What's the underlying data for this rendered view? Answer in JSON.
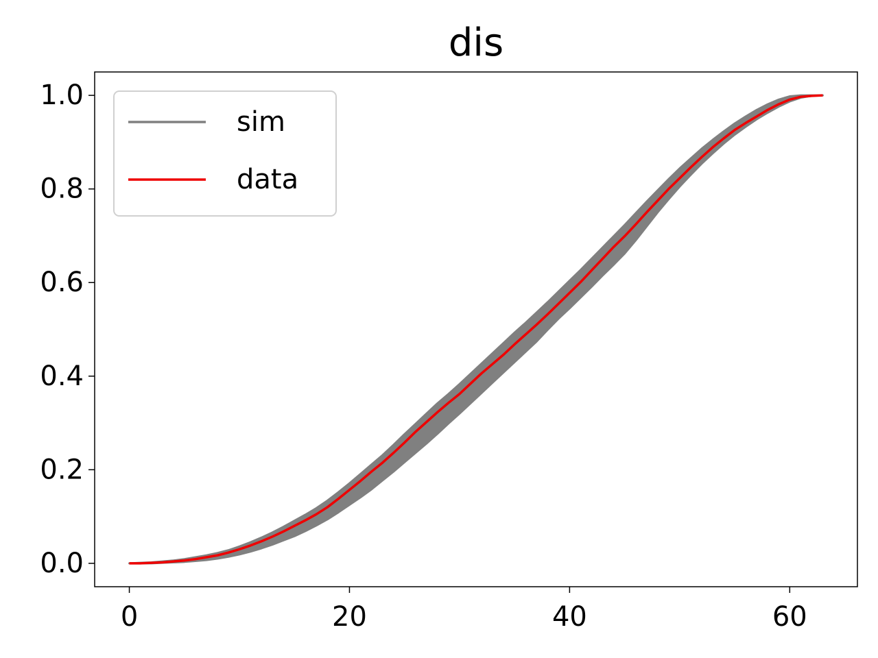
{
  "chart_data": {
    "type": "line",
    "title": "dis",
    "x": [
      0,
      1,
      2,
      3,
      4,
      5,
      6,
      7,
      8,
      9,
      10,
      11,
      12,
      13,
      14,
      15,
      16,
      17,
      18,
      19,
      20,
      21,
      22,
      23,
      24,
      25,
      26,
      27,
      28,
      29,
      30,
      31,
      32,
      33,
      34,
      35,
      36,
      37,
      38,
      39,
      40,
      41,
      42,
      43,
      44,
      45,
      46,
      47,
      48,
      49,
      50,
      51,
      52,
      53,
      54,
      55,
      56,
      57,
      58,
      59,
      60,
      61,
      62,
      63
    ],
    "series": [
      {
        "name": "sim",
        "color": "#808080",
        "upper": [
          0,
          0.001,
          0.002,
          0.004,
          0.006,
          0.009,
          0.013,
          0.017,
          0.022,
          0.028,
          0.036,
          0.045,
          0.055,
          0.066,
          0.078,
          0.091,
          0.104,
          0.118,
          0.134,
          0.152,
          0.171,
          0.191,
          0.211,
          0.231,
          0.253,
          0.276,
          0.298,
          0.32,
          0.342,
          0.362,
          0.383,
          0.405,
          0.427,
          0.449,
          0.471,
          0.493,
          0.514,
          0.536,
          0.558,
          0.581,
          0.604,
          0.627,
          0.651,
          0.675,
          0.699,
          0.723,
          0.748,
          0.773,
          0.797,
          0.821,
          0.844,
          0.865,
          0.886,
          0.905,
          0.923,
          0.94,
          0.955,
          0.969,
          0.981,
          0.991,
          0.998,
          1.0,
          1.0,
          1.0
        ],
        "lower": [
          0,
          0,
          0,
          0.001,
          0.002,
          0.003,
          0.005,
          0.007,
          0.01,
          0.014,
          0.019,
          0.025,
          0.032,
          0.04,
          0.049,
          0.058,
          0.069,
          0.081,
          0.094,
          0.109,
          0.125,
          0.141,
          0.158,
          0.177,
          0.196,
          0.216,
          0.236,
          0.256,
          0.277,
          0.299,
          0.32,
          0.342,
          0.364,
          0.386,
          0.408,
          0.43,
          0.452,
          0.474,
          0.499,
          0.523,
          0.545,
          0.568,
          0.591,
          0.615,
          0.638,
          0.662,
          0.69,
          0.72,
          0.75,
          0.778,
          0.805,
          0.83,
          0.854,
          0.876,
          0.897,
          0.916,
          0.933,
          0.949,
          0.963,
          0.976,
          0.987,
          0.995,
          0.999,
          1.0
        ]
      },
      {
        "name": "data",
        "color": "#ee0000",
        "values": [
          0,
          0,
          0.001,
          0.002,
          0.004,
          0.006,
          0.009,
          0.013,
          0.017,
          0.023,
          0.03,
          0.038,
          0.047,
          0.057,
          0.068,
          0.08,
          0.092,
          0.105,
          0.12,
          0.138,
          0.157,
          0.176,
          0.196,
          0.215,
          0.236,
          0.258,
          0.281,
          0.302,
          0.323,
          0.343,
          0.362,
          0.384,
          0.406,
          0.426,
          0.446,
          0.468,
          0.489,
          0.51,
          0.532,
          0.555,
          0.578,
          0.601,
          0.626,
          0.651,
          0.676,
          0.699,
          0.724,
          0.75,
          0.775,
          0.8,
          0.823,
          0.846,
          0.868,
          0.889,
          0.908,
          0.926,
          0.941,
          0.955,
          0.969,
          0.981,
          0.991,
          0.997,
          0.999,
          1.0
        ]
      }
    ],
    "xlim": [
      -3.15,
      66.15
    ],
    "xticks": [
      0,
      20,
      40,
      60
    ],
    "ylim": [
      -0.05,
      1.05
    ],
    "yticks": [
      {
        "value": 0,
        "label": "0.0"
      },
      0.2,
      0.4,
      0.6,
      0.8,
      {
        "value": 1,
        "label": "1.0"
      }
    ],
    "legend": "upper left"
  }
}
